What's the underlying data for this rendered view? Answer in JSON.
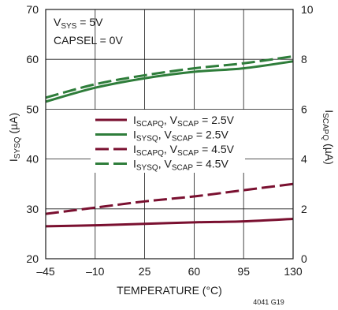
{
  "chart_data": {
    "type": "line",
    "x": [
      -45,
      -10,
      25,
      60,
      95,
      130
    ],
    "x_ticks": [
      "–45",
      "–10",
      "25",
      "60",
      "95",
      "130"
    ],
    "xlabel": "TEMPERATURE (°C)",
    "xlim": [
      -45,
      130
    ],
    "y_left": {
      "label_main": "I",
      "label_sub": "SYSQ",
      "label_unit": " (µA)",
      "lim": [
        20,
        70
      ],
      "ticks": [
        20,
        30,
        40,
        50,
        60,
        70
      ]
    },
    "y_right": {
      "label_main": "I",
      "label_sub": "SCAPQ",
      "label_unit": " (µA)",
      "lim": [
        0,
        10
      ],
      "ticks": [
        0,
        2,
        4,
        6,
        8,
        10
      ]
    },
    "grid": true,
    "annotation": {
      "line1": {
        "main": "V",
        "sub": "SYS",
        "rest": " = 5V"
      },
      "line2": "CAPSEL = 0V"
    },
    "figure_id": "4041 G19",
    "legend_position": "center",
    "series": [
      {
        "axis": "right",
        "color": "#7a1030",
        "dash": "solid",
        "label": {
          "m1": "I",
          "s1": "SCAPQ",
          "c": ", V",
          "s2": "SCAP",
          "rest": " = 2.5V"
        },
        "values": [
          1.3,
          1.34,
          1.4,
          1.46,
          1.5,
          1.6
        ]
      },
      {
        "axis": "left",
        "color": "#2e7d3a",
        "dash": "solid",
        "label": {
          "m1": "I",
          "s1": "SYSQ",
          "c": ", V",
          "s2": "SCAP",
          "rest": " = 2.5V"
        },
        "values": [
          51.5,
          54.3,
          56.2,
          57.5,
          58.2,
          59.6
        ]
      },
      {
        "axis": "right",
        "color": "#7a1030",
        "dash": "dashed",
        "label": {
          "m1": "I",
          "s1": "SCAPQ",
          "c": ", V",
          "s2": "SCAP",
          "rest": " = 4.5V"
        },
        "values": [
          1.8,
          2.05,
          2.3,
          2.5,
          2.75,
          3.0
        ]
      },
      {
        "axis": "left",
        "color": "#2e7d3a",
        "dash": "dashed",
        "label": {
          "m1": "I",
          "s1": "SYSQ",
          "c": ", V",
          "s2": "SCAP",
          "rest": " = 4.5V"
        },
        "values": [
          52.3,
          55.0,
          56.8,
          58.2,
          59.2,
          60.6
        ]
      }
    ]
  }
}
